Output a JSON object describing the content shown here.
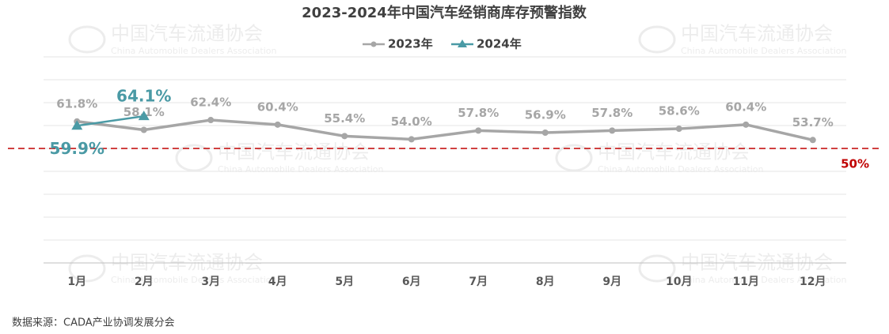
{
  "chart_data": {
    "type": "line",
    "title": "2023-2024年中国汽车经销商库存预警指数",
    "categories": [
      "1月",
      "2月",
      "3月",
      "4月",
      "5月",
      "6月",
      "7月",
      "8月",
      "9月",
      "10月",
      "11月",
      "12月"
    ],
    "series": [
      {
        "name": "2023年",
        "color": "#a6a6a6",
        "marker": "circle",
        "values": [
          61.8,
          58.1,
          62.4,
          60.4,
          55.4,
          54.0,
          57.8,
          56.9,
          57.8,
          58.6,
          60.4,
          53.7
        ],
        "value_labels": [
          "61.8%",
          "58.1%",
          "62.4%",
          "60.4%",
          "55.4%",
          "54.0%",
          "57.8%",
          "56.9%",
          "57.8%",
          "58.6%",
          "60.4%",
          "53.7%"
        ]
      },
      {
        "name": "2024年",
        "color": "#4a9aa5",
        "marker": "triangle",
        "values": [
          59.9,
          64.1,
          null,
          null,
          null,
          null,
          null,
          null,
          null,
          null,
          null,
          null
        ],
        "value_labels": [
          "59.9%",
          "64.1%",
          null,
          null,
          null,
          null,
          null,
          null,
          null,
          null,
          null,
          null
        ]
      }
    ],
    "ylim": [
      0,
      90
    ],
    "yticks": [
      0,
      10,
      20,
      30,
      40,
      50,
      60,
      70,
      80,
      90
    ],
    "grid": true,
    "warning_line": {
      "value": 50,
      "label": "50%",
      "color": "#c00000"
    },
    "legend": "top",
    "watermark": {
      "cn": "中国汽车流通协会",
      "en": "China Automobile Dealers Association"
    },
    "source": "数据来源：CADA产业协调发展分会"
  }
}
